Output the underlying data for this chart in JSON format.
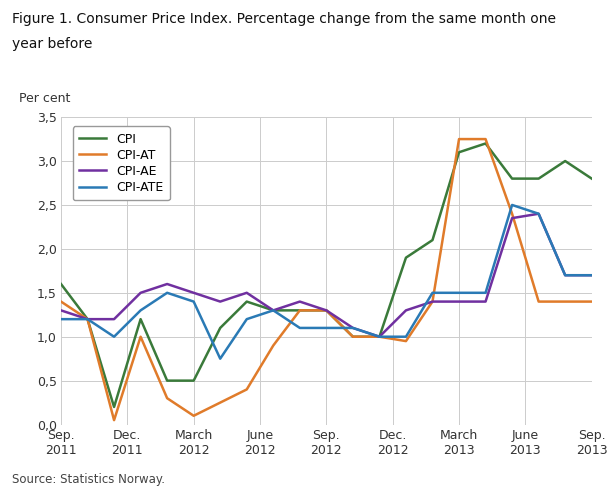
{
  "title_line1": "Figure 1. Consumer Price Index. Percentage change from the same month one",
  "title_line2": "year before",
  "ylabel": "Per cent",
  "source": "Source: Statistics Norway.",
  "ylim": [
    0.0,
    3.5
  ],
  "yticks": [
    0.0,
    0.5,
    1.0,
    1.5,
    2.0,
    2.5,
    3.0,
    3.5
  ],
  "ytick_labels": [
    "0,0",
    "0,5",
    "1,0",
    "1,5",
    "2,0",
    "2,5",
    "3,0",
    "3,5"
  ],
  "xtick_labels": [
    "Sep.\n2011",
    "Dec.\n2011",
    "March\n2012",
    "June\n2012",
    "Sep.\n2012",
    "Dec.\n2012",
    "March\n2013",
    "June\n2013",
    "Sep.\n2013"
  ],
  "series": {
    "CPI": {
      "color": "#3a7a3a",
      "values": [
        1.6,
        1.2,
        0.2,
        1.2,
        0.5,
        0.5,
        1.1,
        1.4,
        1.3,
        1.3,
        1.3,
        1.0,
        1.0,
        1.9,
        2.1,
        3.1,
        3.2,
        2.8,
        2.8,
        3.0,
        2.8
      ]
    },
    "CPI-AT": {
      "color": "#e07b2a",
      "values": [
        1.4,
        1.2,
        0.05,
        1.0,
        0.3,
        0.1,
        0.25,
        0.4,
        0.9,
        1.3,
        1.3,
        1.0,
        1.0,
        0.95,
        1.4,
        3.25,
        3.25,
        2.4,
        1.4,
        1.4,
        1.4
      ]
    },
    "CPI-AE": {
      "color": "#7030a0",
      "values": [
        1.3,
        1.2,
        1.2,
        1.5,
        1.6,
        1.5,
        1.4,
        1.5,
        1.3,
        1.4,
        1.3,
        1.1,
        1.0,
        1.3,
        1.4,
        1.4,
        1.4,
        2.35,
        2.4,
        1.7,
        1.7
      ]
    },
    "CPI-ATE": {
      "color": "#2a7ab5",
      "values": [
        1.2,
        1.2,
        1.0,
        1.3,
        1.5,
        1.4,
        0.75,
        1.2,
        1.3,
        1.1,
        1.1,
        1.1,
        1.0,
        1.0,
        1.5,
        1.5,
        1.5,
        2.5,
        2.4,
        1.7,
        1.7
      ]
    }
  },
  "n_points": 21,
  "background_color": "#ffffff",
  "grid_color": "#cccccc",
  "title_fontsize": 10,
  "tick_fontsize": 9,
  "ylabel_fontsize": 9,
  "source_fontsize": 8.5
}
